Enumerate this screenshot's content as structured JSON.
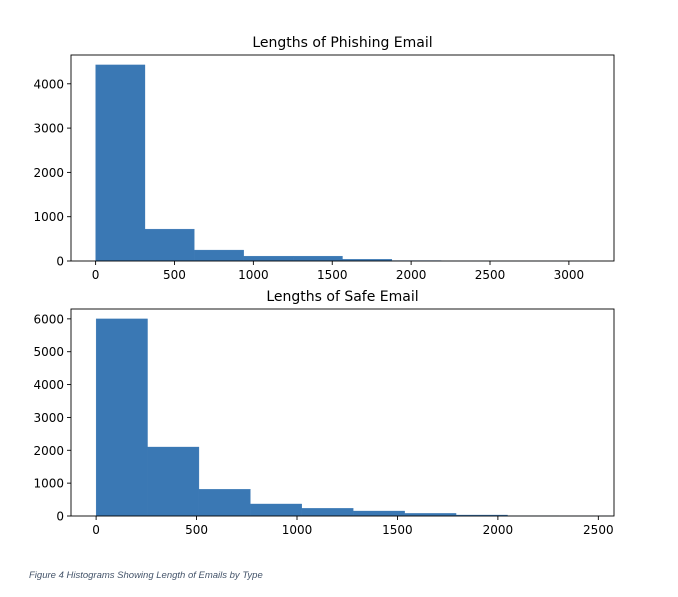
{
  "chart_data": [
    {
      "type": "bar",
      "title": "Lengths of Phishing Email",
      "bin_edges": [
        0,
        313,
        626,
        939,
        1252,
        1565,
        1878,
        2191,
        2504,
        2817,
        3130
      ],
      "values": [
        4427,
        720,
        247,
        110,
        110,
        40,
        10,
        3,
        1,
        1
      ],
      "xlim": [
        -156,
        3286
      ],
      "ylim": [
        0,
        4650
      ],
      "xticks": [
        0,
        500,
        1000,
        1500,
        2000,
        2500,
        3000
      ],
      "yticks": [
        0,
        1000,
        2000,
        3000,
        4000
      ],
      "color": "#3a78b4",
      "grid": false
    },
    {
      "type": "bar",
      "title": "Lengths of Safe Email",
      "bin_edges": [
        0,
        256,
        512,
        768,
        1024,
        1280,
        1536,
        1792,
        2048,
        2304,
        2560
      ],
      "values": [
        6000,
        2100,
        814,
        366,
        234,
        152,
        80,
        30,
        5,
        2
      ],
      "xlim": [
        -125,
        2578
      ],
      "ylim": [
        0,
        6300
      ],
      "xticks": [
        0,
        500,
        1000,
        1500,
        2000,
        2500
      ],
      "yticks": [
        0,
        1000,
        2000,
        3000,
        4000,
        5000,
        6000
      ],
      "color": "#3a78b4",
      "grid": false
    }
  ],
  "caption": "Figure 4 Histograms Showing Length of Emails by Type"
}
